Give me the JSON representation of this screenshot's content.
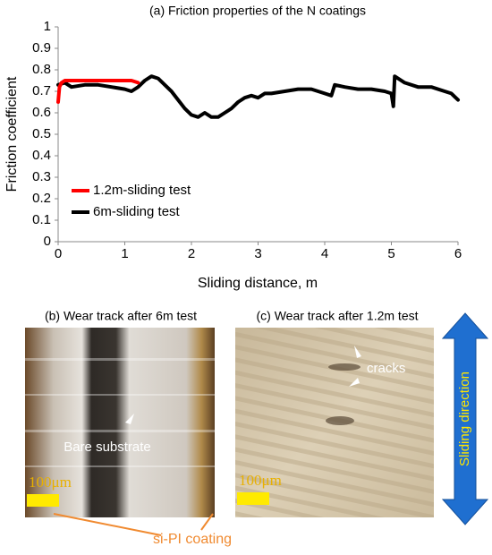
{
  "chart_data": {
    "type": "line",
    "title": "(a) Friction properties of the N coatings",
    "xlabel": "Sliding distance, m",
    "ylabel": "Friction coefficient",
    "xlim": [
      0,
      6
    ],
    "xticks": [
      0,
      1,
      2,
      3,
      4,
      5,
      6
    ],
    "ylim": [
      0,
      1
    ],
    "yticks": [
      0,
      0.1,
      0.2,
      0.3,
      0.4,
      0.5,
      0.6,
      0.7,
      0.8,
      0.9,
      1
    ],
    "grid": false,
    "legend": "lower left",
    "series": [
      {
        "name": "1.2m-sliding test",
        "color": "#ff0000",
        "x": [
          0,
          0.02,
          0.05,
          0.1,
          0.3,
          0.5,
          0.7,
          0.9,
          1.0,
          1.1,
          1.2
        ],
        "values": [
          0.65,
          0.72,
          0.74,
          0.75,
          0.75,
          0.75,
          0.75,
          0.75,
          0.75,
          0.75,
          0.74
        ]
      },
      {
        "name": "6m-sliding test",
        "color": "#000000",
        "x": [
          0,
          0.1,
          0.2,
          0.4,
          0.6,
          0.8,
          1.0,
          1.1,
          1.2,
          1.3,
          1.4,
          1.5,
          1.6,
          1.7,
          1.8,
          1.9,
          2.0,
          2.1,
          2.2,
          2.3,
          2.4,
          2.5,
          2.6,
          2.7,
          2.8,
          2.9,
          3.0,
          3.1,
          3.2,
          3.4,
          3.6,
          3.8,
          4.0,
          4.1,
          4.15,
          4.3,
          4.5,
          4.7,
          4.9,
          5.0,
          5.03,
          5.05,
          5.2,
          5.4,
          5.6,
          5.8,
          5.9,
          6.0
        ],
        "values": [
          0.73,
          0.74,
          0.72,
          0.73,
          0.73,
          0.72,
          0.71,
          0.7,
          0.72,
          0.75,
          0.77,
          0.76,
          0.73,
          0.7,
          0.66,
          0.62,
          0.59,
          0.58,
          0.6,
          0.58,
          0.58,
          0.6,
          0.62,
          0.65,
          0.67,
          0.68,
          0.67,
          0.69,
          0.69,
          0.7,
          0.71,
          0.71,
          0.69,
          0.68,
          0.73,
          0.72,
          0.71,
          0.71,
          0.7,
          0.69,
          0.63,
          0.77,
          0.74,
          0.72,
          0.72,
          0.7,
          0.69,
          0.66
        ]
      }
    ]
  },
  "panels": {
    "b_caption": "(b) Wear track after 6m test",
    "c_caption": "(c) Wear track after 1.2m test",
    "bare_substrate": "Bare substrate",
    "scale_b": "100μm",
    "scale_c": "100μm",
    "cracks": "cracks",
    "direction": "Sliding direction",
    "coating": "si-PI coating"
  }
}
